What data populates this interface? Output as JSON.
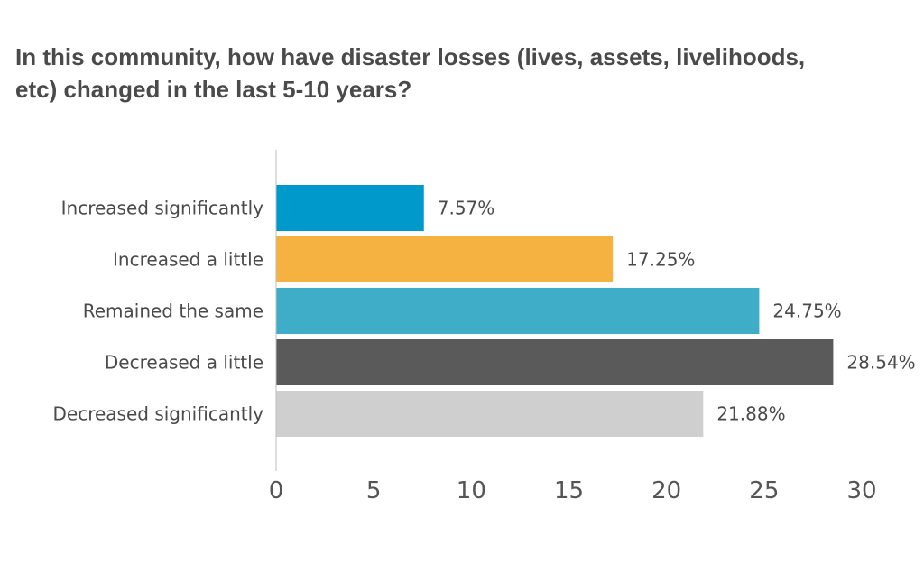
{
  "chart_data": {
    "type": "bar",
    "orientation": "horizontal",
    "title": "In this community, how have disaster losses (lives, assets, livelihoods, etc) changed in the last 5-10 years?",
    "categories": [
      "Increased significantly",
      "Increased a little",
      "Remained the same",
      "Decreased a little",
      "Decreased significantly"
    ],
    "values": [
      7.57,
      17.25,
      24.75,
      28.54,
      21.88
    ],
    "value_labels": [
      "7.57%",
      "17.25%",
      "24.75%",
      "28.54%",
      "21.88%"
    ],
    "colors": [
      "#0099cc",
      "#f5b240",
      "#3fadc8",
      "#5a5a5a",
      "#cfcfcf"
    ],
    "xlim": [
      0,
      30
    ],
    "xticks": [
      0,
      5,
      10,
      15,
      20,
      25,
      30
    ],
    "grid": false,
    "legend": "none"
  }
}
